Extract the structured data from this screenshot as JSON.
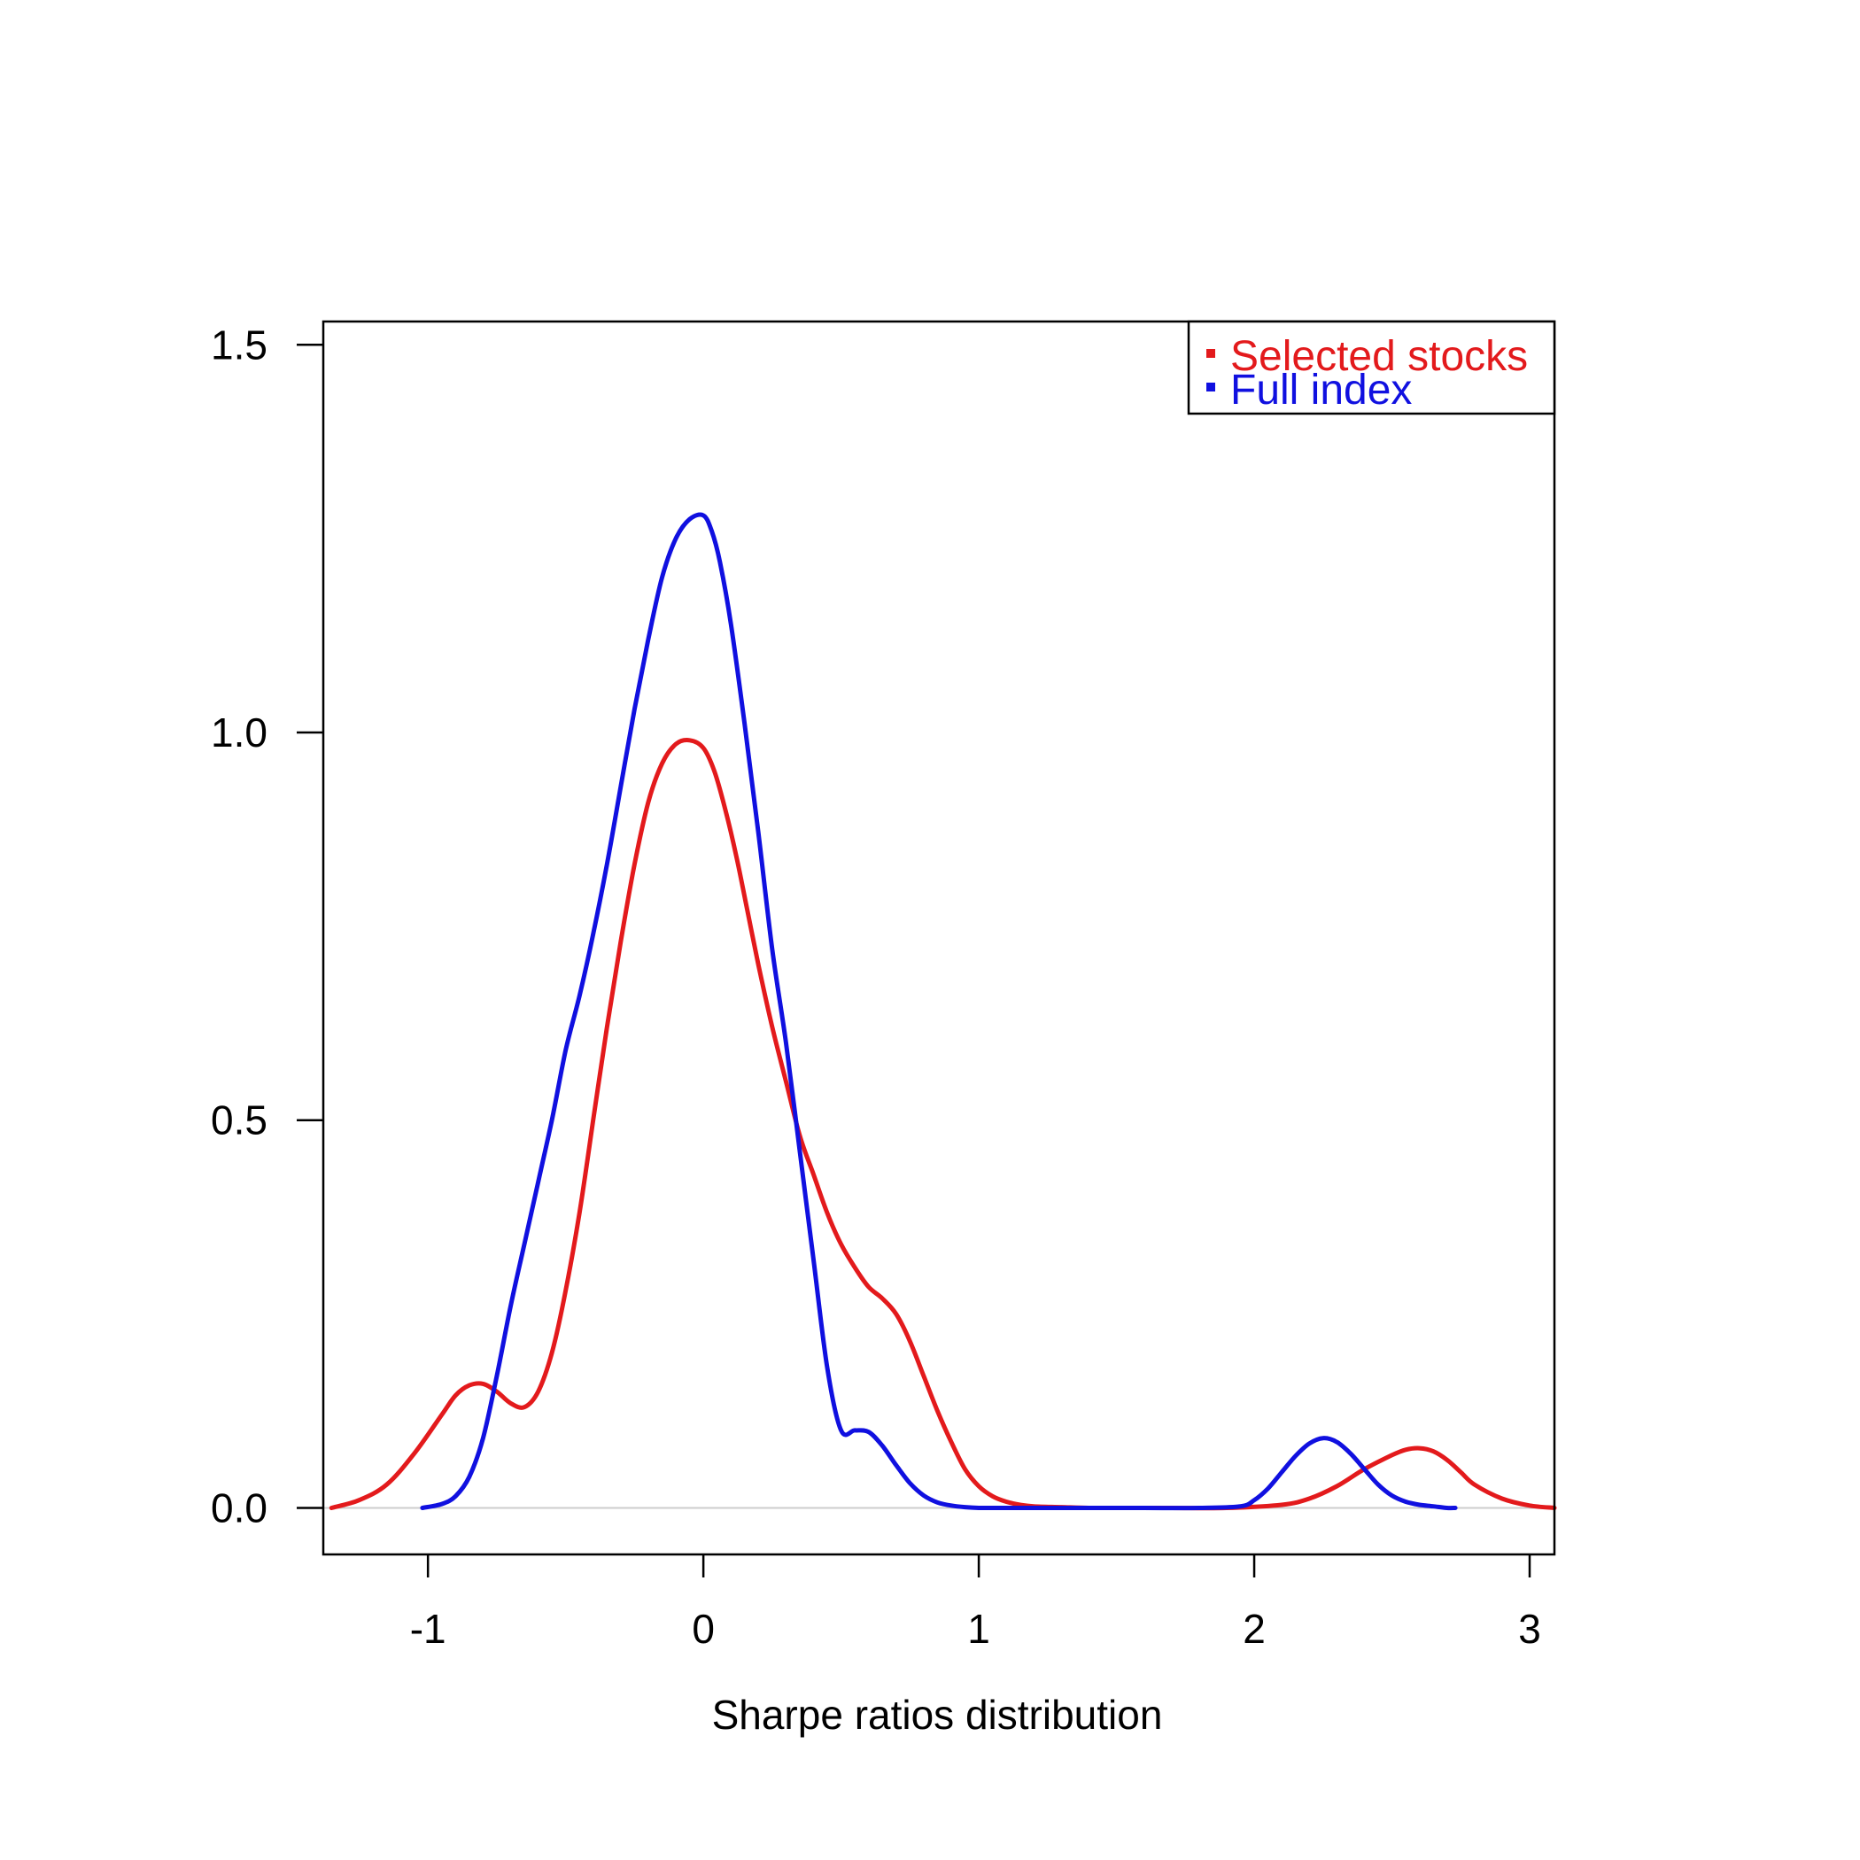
{
  "chart_data": {
    "type": "line",
    "title": "",
    "xlabel": "Sharpe ratios distribution",
    "ylabel": "",
    "xlim": [
      -1.38,
      3.09
    ],
    "ylim": [
      -0.06,
      1.53
    ],
    "x_ticks": [
      {
        "value": -1,
        "label": "-1"
      },
      {
        "value": 0,
        "label": "0"
      },
      {
        "value": 1,
        "label": "1"
      },
      {
        "value": 2,
        "label": "2"
      },
      {
        "value": 3,
        "label": "3"
      }
    ],
    "y_ticks": [
      {
        "value": 0,
        "label": "0.0"
      },
      {
        "value": 0.5,
        "label": "0.5"
      },
      {
        "value": 1,
        "label": "1.0"
      },
      {
        "value": 1.5,
        "label": "1.5"
      }
    ],
    "grid": false,
    "baseline": 0,
    "legend": {
      "position": "top-right",
      "items": [
        {
          "label": "Selected stocks",
          "color": "#e31a1c"
        },
        {
          "label": "Full index",
          "color": "#1010e0"
        }
      ]
    },
    "series": [
      {
        "name": "Selected stocks",
        "color": "#e31a1c",
        "x": [
          -1.35,
          -1.25,
          -1.15,
          -1.05,
          -0.95,
          -0.9,
          -0.85,
          -0.8,
          -0.75,
          -0.7,
          -0.65,
          -0.6,
          -0.55,
          -0.5,
          -0.45,
          -0.4,
          -0.35,
          -0.3,
          -0.25,
          -0.2,
          -0.15,
          -0.1,
          -0.05,
          0.0,
          0.04,
          0.08,
          0.12,
          0.16,
          0.2,
          0.25,
          0.3,
          0.35,
          0.4,
          0.45,
          0.5,
          0.55,
          0.6,
          0.65,
          0.7,
          0.75,
          0.8,
          0.85,
          0.9,
          0.95,
          1.0,
          1.05,
          1.1,
          1.15,
          1.2,
          1.3,
          1.4,
          1.5,
          1.7,
          1.9,
          2.1,
          2.2,
          2.3,
          2.4,
          2.5,
          2.55,
          2.6,
          2.65,
          2.7,
          2.75,
          2.8,
          2.9,
          3.0,
          3.09
        ],
        "y": [
          0.0,
          0.01,
          0.03,
          0.07,
          0.12,
          0.145,
          0.158,
          0.16,
          0.15,
          0.135,
          0.13,
          0.15,
          0.2,
          0.28,
          0.38,
          0.5,
          0.62,
          0.73,
          0.83,
          0.91,
          0.96,
          0.985,
          0.99,
          0.98,
          0.95,
          0.9,
          0.84,
          0.77,
          0.7,
          0.62,
          0.55,
          0.48,
          0.43,
          0.38,
          0.34,
          0.31,
          0.285,
          0.27,
          0.25,
          0.215,
          0.17,
          0.125,
          0.085,
          0.05,
          0.028,
          0.015,
          0.008,
          0.004,
          0.002,
          0.001,
          0.0,
          0.0,
          0.0,
          0.0,
          0.004,
          0.012,
          0.028,
          0.05,
          0.068,
          0.075,
          0.077,
          0.073,
          0.062,
          0.046,
          0.03,
          0.012,
          0.003,
          0.0
        ]
      },
      {
        "name": "Full index",
        "color": "#1010e0",
        "x": [
          -1.02,
          -0.95,
          -0.9,
          -0.85,
          -0.8,
          -0.75,
          -0.7,
          -0.65,
          -0.6,
          -0.55,
          -0.5,
          -0.45,
          -0.4,
          -0.35,
          -0.3,
          -0.25,
          -0.2,
          -0.15,
          -0.1,
          -0.05,
          0.0,
          0.03,
          0.06,
          0.1,
          0.15,
          0.2,
          0.25,
          0.3,
          0.35,
          0.4,
          0.45,
          0.5,
          0.55,
          0.6,
          0.65,
          0.7,
          0.75,
          0.8,
          0.85,
          0.9,
          0.95,
          1.0,
          1.05,
          1.1,
          1.2,
          1.4,
          1.6,
          1.8,
          1.95,
          2.0,
          2.05,
          2.1,
          2.15,
          2.2,
          2.25,
          2.3,
          2.35,
          2.4,
          2.45,
          2.5,
          2.55,
          2.6,
          2.65,
          2.7,
          2.73
        ],
        "y": [
          0.0,
          0.005,
          0.015,
          0.04,
          0.09,
          0.17,
          0.26,
          0.34,
          0.42,
          0.5,
          0.59,
          0.66,
          0.74,
          0.83,
          0.93,
          1.03,
          1.12,
          1.2,
          1.25,
          1.275,
          1.28,
          1.26,
          1.22,
          1.14,
          1.01,
          0.87,
          0.72,
          0.6,
          0.46,
          0.32,
          0.18,
          0.1,
          0.1,
          0.098,
          0.08,
          0.055,
          0.032,
          0.016,
          0.007,
          0.003,
          0.001,
          0.0,
          0.0,
          0.0,
          0.0,
          0.0,
          0.0,
          0.0,
          0.002,
          0.01,
          0.025,
          0.046,
          0.067,
          0.083,
          0.09,
          0.085,
          0.07,
          0.05,
          0.03,
          0.016,
          0.008,
          0.004,
          0.002,
          0.0,
          0.0
        ]
      }
    ]
  }
}
